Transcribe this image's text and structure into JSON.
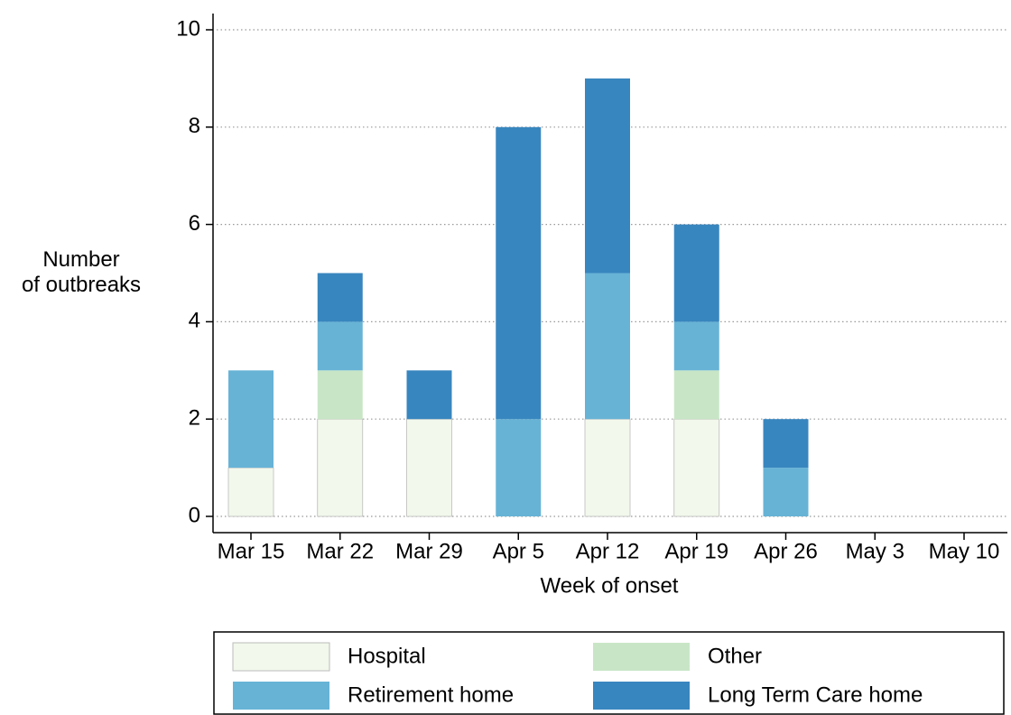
{
  "chart_data": {
    "type": "stacked_bar",
    "xlabel": "Week of onset",
    "ylabel": "Number\nof outbreaks",
    "categories": [
      "Mar 15",
      "Mar 22",
      "Mar 29",
      "Apr 5",
      "Apr 12",
      "Apr 19",
      "Apr 26",
      "May 3",
      "May 10"
    ],
    "series": [
      {
        "name": "Hospital",
        "color": "#f2f8ec",
        "values": [
          1,
          2,
          2,
          0,
          2,
          2,
          0,
          0,
          0
        ]
      },
      {
        "name": "Other",
        "color": "#c8e6c6",
        "values": [
          0,
          1,
          0,
          0,
          0,
          1,
          0,
          0,
          0
        ]
      },
      {
        "name": "Retirement home",
        "color": "#67b3d6",
        "values": [
          2,
          1,
          0,
          2,
          3,
          1,
          1,
          0,
          0
        ]
      },
      {
        "name": "Long Term Care home",
        "color": "#3886bf",
        "values": [
          0,
          1,
          1,
          6,
          4,
          2,
          1,
          0,
          0
        ]
      }
    ],
    "ylim": [
      0,
      10
    ],
    "yticks": [
      0,
      2,
      4,
      6,
      8,
      10
    ],
    "grid": true,
    "legend": "bottom"
  }
}
